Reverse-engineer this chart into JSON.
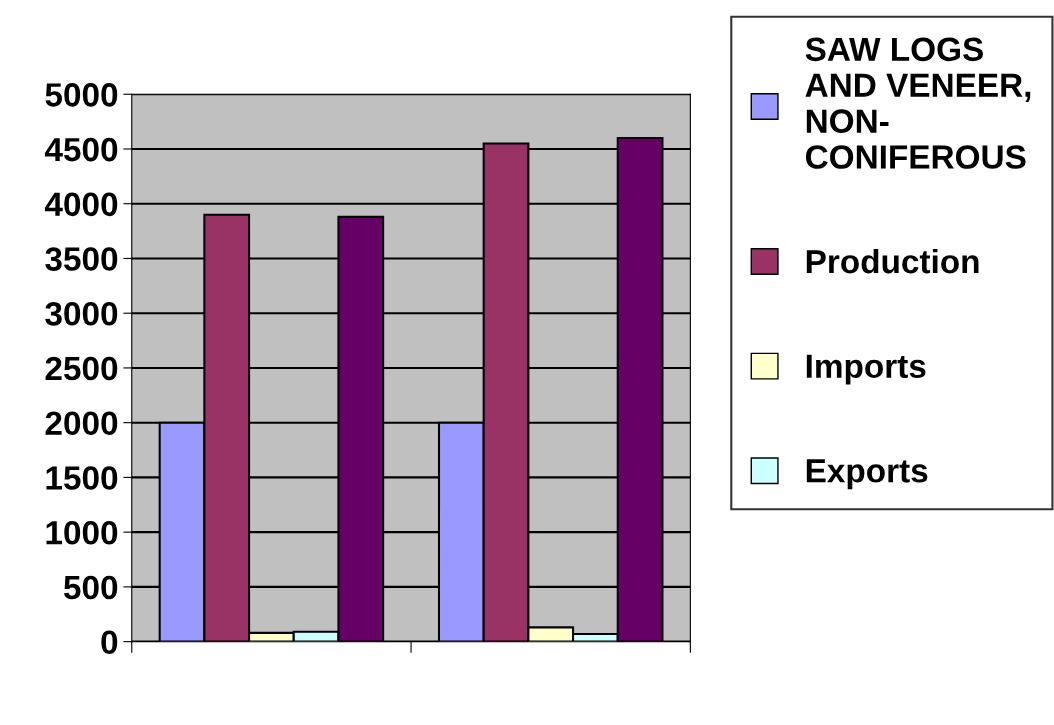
{
  "chart_data": {
    "type": "bar",
    "categories": [
      null,
      null
    ],
    "series": [
      {
        "name": "SAW LOGS AND VENEER, NON-CONIFEROUS",
        "color": "#9999ff",
        "values": [
          2000,
          2000
        ]
      },
      {
        "name": "Production",
        "color": "#993366",
        "values": [
          3900,
          4550
        ]
      },
      {
        "name": "Imports",
        "color": "#ffffcc",
        "values": [
          80,
          130
        ]
      },
      {
        "name": "Exports",
        "color": "#ccffff",
        "values": [
          90,
          70
        ]
      },
      {
        "color": "#660066",
        "values": [
          3880,
          4600
        ]
      }
    ],
    "ylim": [
      0,
      5000
    ],
    "yticks": [
      0,
      500,
      1000,
      1500,
      2000,
      2500,
      3000,
      3500,
      4000,
      4500,
      5000
    ],
    "grid": "y",
    "legend": "right"
  }
}
